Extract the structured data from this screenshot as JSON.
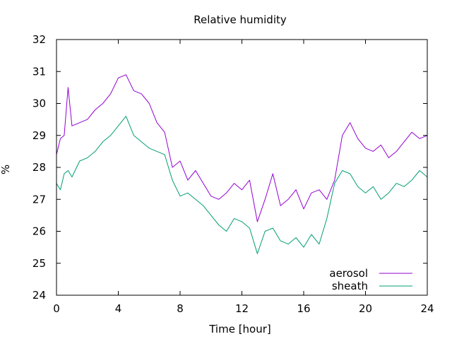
{
  "chart_data": {
    "type": "line",
    "title": "Relative humidity",
    "xlabel": "Time [hour]",
    "ylabel": "%",
    "xlim": [
      0,
      24
    ],
    "ylim": [
      24,
      32
    ],
    "xticks": [
      0,
      4,
      8,
      12,
      16,
      20,
      24
    ],
    "yticks": [
      24,
      25,
      26,
      27,
      28,
      29,
      30,
      31,
      32
    ],
    "grid": false,
    "legend_position": "bottom-right",
    "series": [
      {
        "name": "aerosol",
        "color": "#9400d3",
        "x": [
          0,
          0.25,
          0.5,
          0.75,
          1,
          1.5,
          2,
          2.5,
          3,
          3.5,
          4,
          4.5,
          5,
          5.5,
          6,
          6.5,
          7,
          7.5,
          8,
          8.5,
          9,
          9.5,
          10,
          10.5,
          11,
          11.5,
          12,
          12.5,
          13,
          13.5,
          14,
          14.5,
          15,
          15.5,
          16,
          16.5,
          17,
          17.5,
          18,
          18.5,
          19,
          19.5,
          20,
          20.5,
          21,
          21.5,
          22,
          22.5,
          23,
          23.5,
          24
        ],
        "y": [
          28.4,
          28.9,
          29.0,
          30.5,
          29.3,
          29.4,
          29.5,
          29.8,
          30.0,
          30.3,
          30.8,
          30.9,
          30.4,
          30.3,
          30.0,
          29.4,
          29.1,
          28.0,
          28.2,
          27.6,
          27.9,
          27.5,
          27.1,
          27.0,
          27.2,
          27.5,
          27.3,
          27.6,
          26.3,
          27.0,
          27.8,
          26.8,
          27.0,
          27.3,
          26.7,
          27.2,
          27.3,
          27.0,
          27.6,
          29.0,
          29.4,
          28.9,
          28.6,
          28.5,
          28.7,
          28.3,
          28.5,
          28.8,
          29.1,
          28.9,
          29.0
        ]
      },
      {
        "name": "sheath",
        "color": "#009e73",
        "x": [
          0,
          0.25,
          0.5,
          0.75,
          1,
          1.5,
          2,
          2.5,
          3,
          3.5,
          4,
          4.5,
          5,
          5.5,
          6,
          6.5,
          7,
          7.5,
          8,
          8.5,
          9,
          9.5,
          10,
          10.5,
          11,
          11.5,
          12,
          12.5,
          13,
          13.5,
          14,
          14.5,
          15,
          15.5,
          16,
          16.5,
          17,
          17.5,
          18,
          18.5,
          19,
          19.5,
          20,
          20.5,
          21,
          21.5,
          22,
          22.5,
          23,
          23.5,
          24
        ],
        "y": [
          27.5,
          27.3,
          27.8,
          27.9,
          27.7,
          28.2,
          28.3,
          28.5,
          28.8,
          29.0,
          29.3,
          29.6,
          29.0,
          28.8,
          28.6,
          28.5,
          28.4,
          27.6,
          27.1,
          27.2,
          27.0,
          26.8,
          26.5,
          26.2,
          26.0,
          26.4,
          26.3,
          26.1,
          25.3,
          26.0,
          26.1,
          25.7,
          25.6,
          25.8,
          25.5,
          25.9,
          25.6,
          26.4,
          27.5,
          27.9,
          27.8,
          27.4,
          27.2,
          27.4,
          27.0,
          27.2,
          27.5,
          27.4,
          27.6,
          27.9,
          27.7
        ]
      }
    ]
  }
}
